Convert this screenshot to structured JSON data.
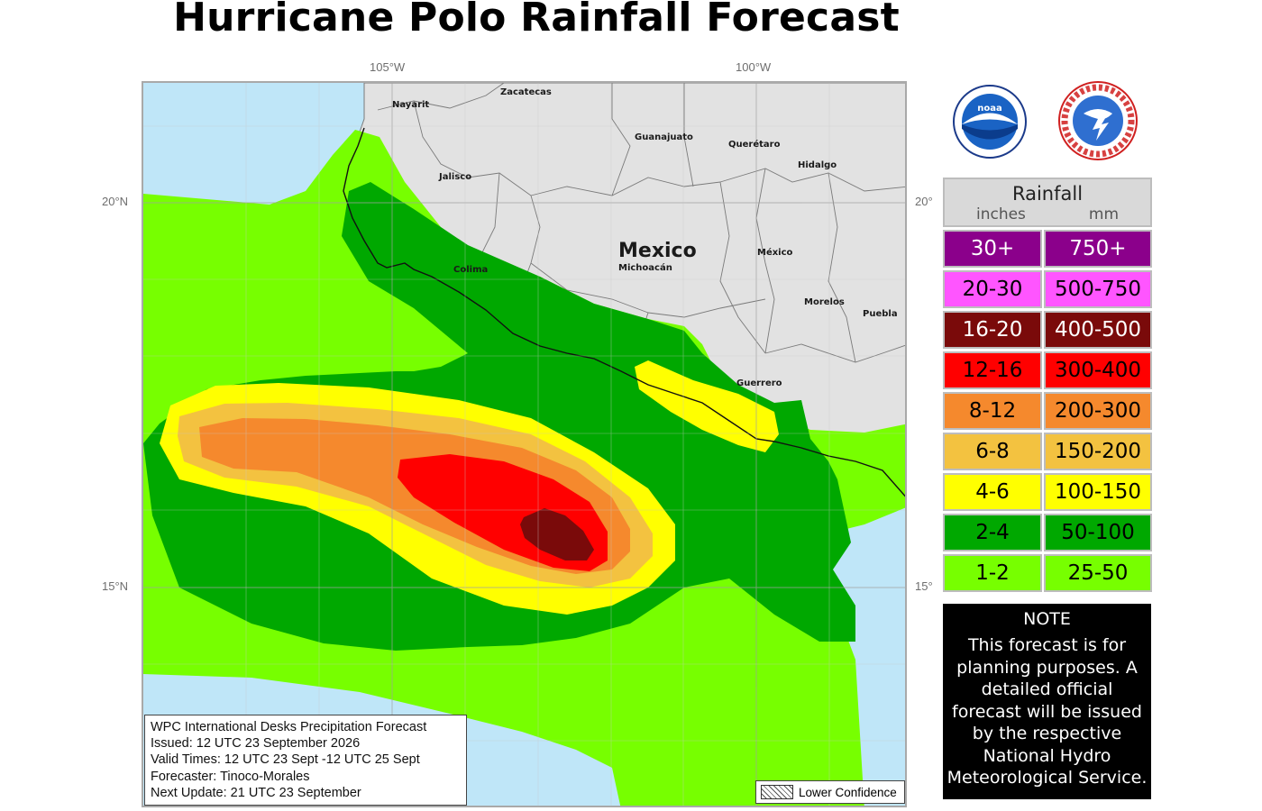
{
  "title": "Hurricane Polo Rainfall Forecast",
  "axes": {
    "lon_105": "105°W",
    "lon_100": "100°W",
    "lat_20_left": "20°N",
    "lat_20_right": "20°",
    "lat_15_left": "15°N",
    "lat_15_right": "15°"
  },
  "map_labels": {
    "country": "Mexico",
    "states": [
      "Nayarit",
      "Zacatecas",
      "Guanajuato",
      "Querétaro",
      "Hidalgo",
      "Jalisco",
      "Michoacán",
      "México",
      "Colima",
      "Morelos",
      "Puebla",
      "Guerrero"
    ]
  },
  "logos": [
    "noaa-logo",
    "national-weather-service-logo"
  ],
  "legend": {
    "title": "Rainfall",
    "unit_in": "inches",
    "unit_mm": "mm",
    "rows": [
      {
        "inches": "30+",
        "mm": "750+",
        "color": "#8b008b",
        "text_color": "#ffffff"
      },
      {
        "inches": "20-30",
        "mm": "500-750",
        "color": "#ff55ff",
        "text_color": "#000000"
      },
      {
        "inches": "16-20",
        "mm": "400-500",
        "color": "#7a0a0a",
        "text_color": "#ffffff"
      },
      {
        "inches": "12-16",
        "mm": "300-400",
        "color": "#ff0000",
        "text_color": "#000000"
      },
      {
        "inches": "8-12",
        "mm": "200-300",
        "color": "#f5892d",
        "text_color": "#000000"
      },
      {
        "inches": "6-8",
        "mm": "150-200",
        "color": "#f3c240",
        "text_color": "#000000"
      },
      {
        "inches": "4-6",
        "mm": "100-150",
        "color": "#ffff00",
        "text_color": "#000000"
      },
      {
        "inches": "2-4",
        "mm": "50-100",
        "color": "#00a800",
        "text_color": "#000000"
      },
      {
        "inches": "1-2",
        "mm": "25-50",
        "color": "#77ff00",
        "text_color": "#000000"
      }
    ]
  },
  "note": {
    "heading": "NOTE",
    "body": "This forecast is for planning purposes. A detailed official forecast will be issued by the respective National Hydro Meteorological Service."
  },
  "info": {
    "line1": "WPC International Desks Precipitation Forecast",
    "line2": "Issued: 12 UTC 23 September 2026",
    "line3": "Valid Times: 12 UTC 23 Sept -12 UTC 25 Sept",
    "line4": "Forecaster: Tinoco-Morales",
    "line5": "Next Update:  21 UTC 23 September"
  },
  "lower_confidence_label": "Lower Confidence",
  "colors": {
    "ocean": "#bfe6f8",
    "land": "#e2e2e2",
    "c1_2": "#77ff00",
    "c2_4": "#00a800",
    "c4_6": "#ffff00",
    "c6_8": "#f3c240",
    "c8_12": "#f5892d",
    "c12_16": "#ff0000",
    "c16_20": "#7a0a0a"
  }
}
